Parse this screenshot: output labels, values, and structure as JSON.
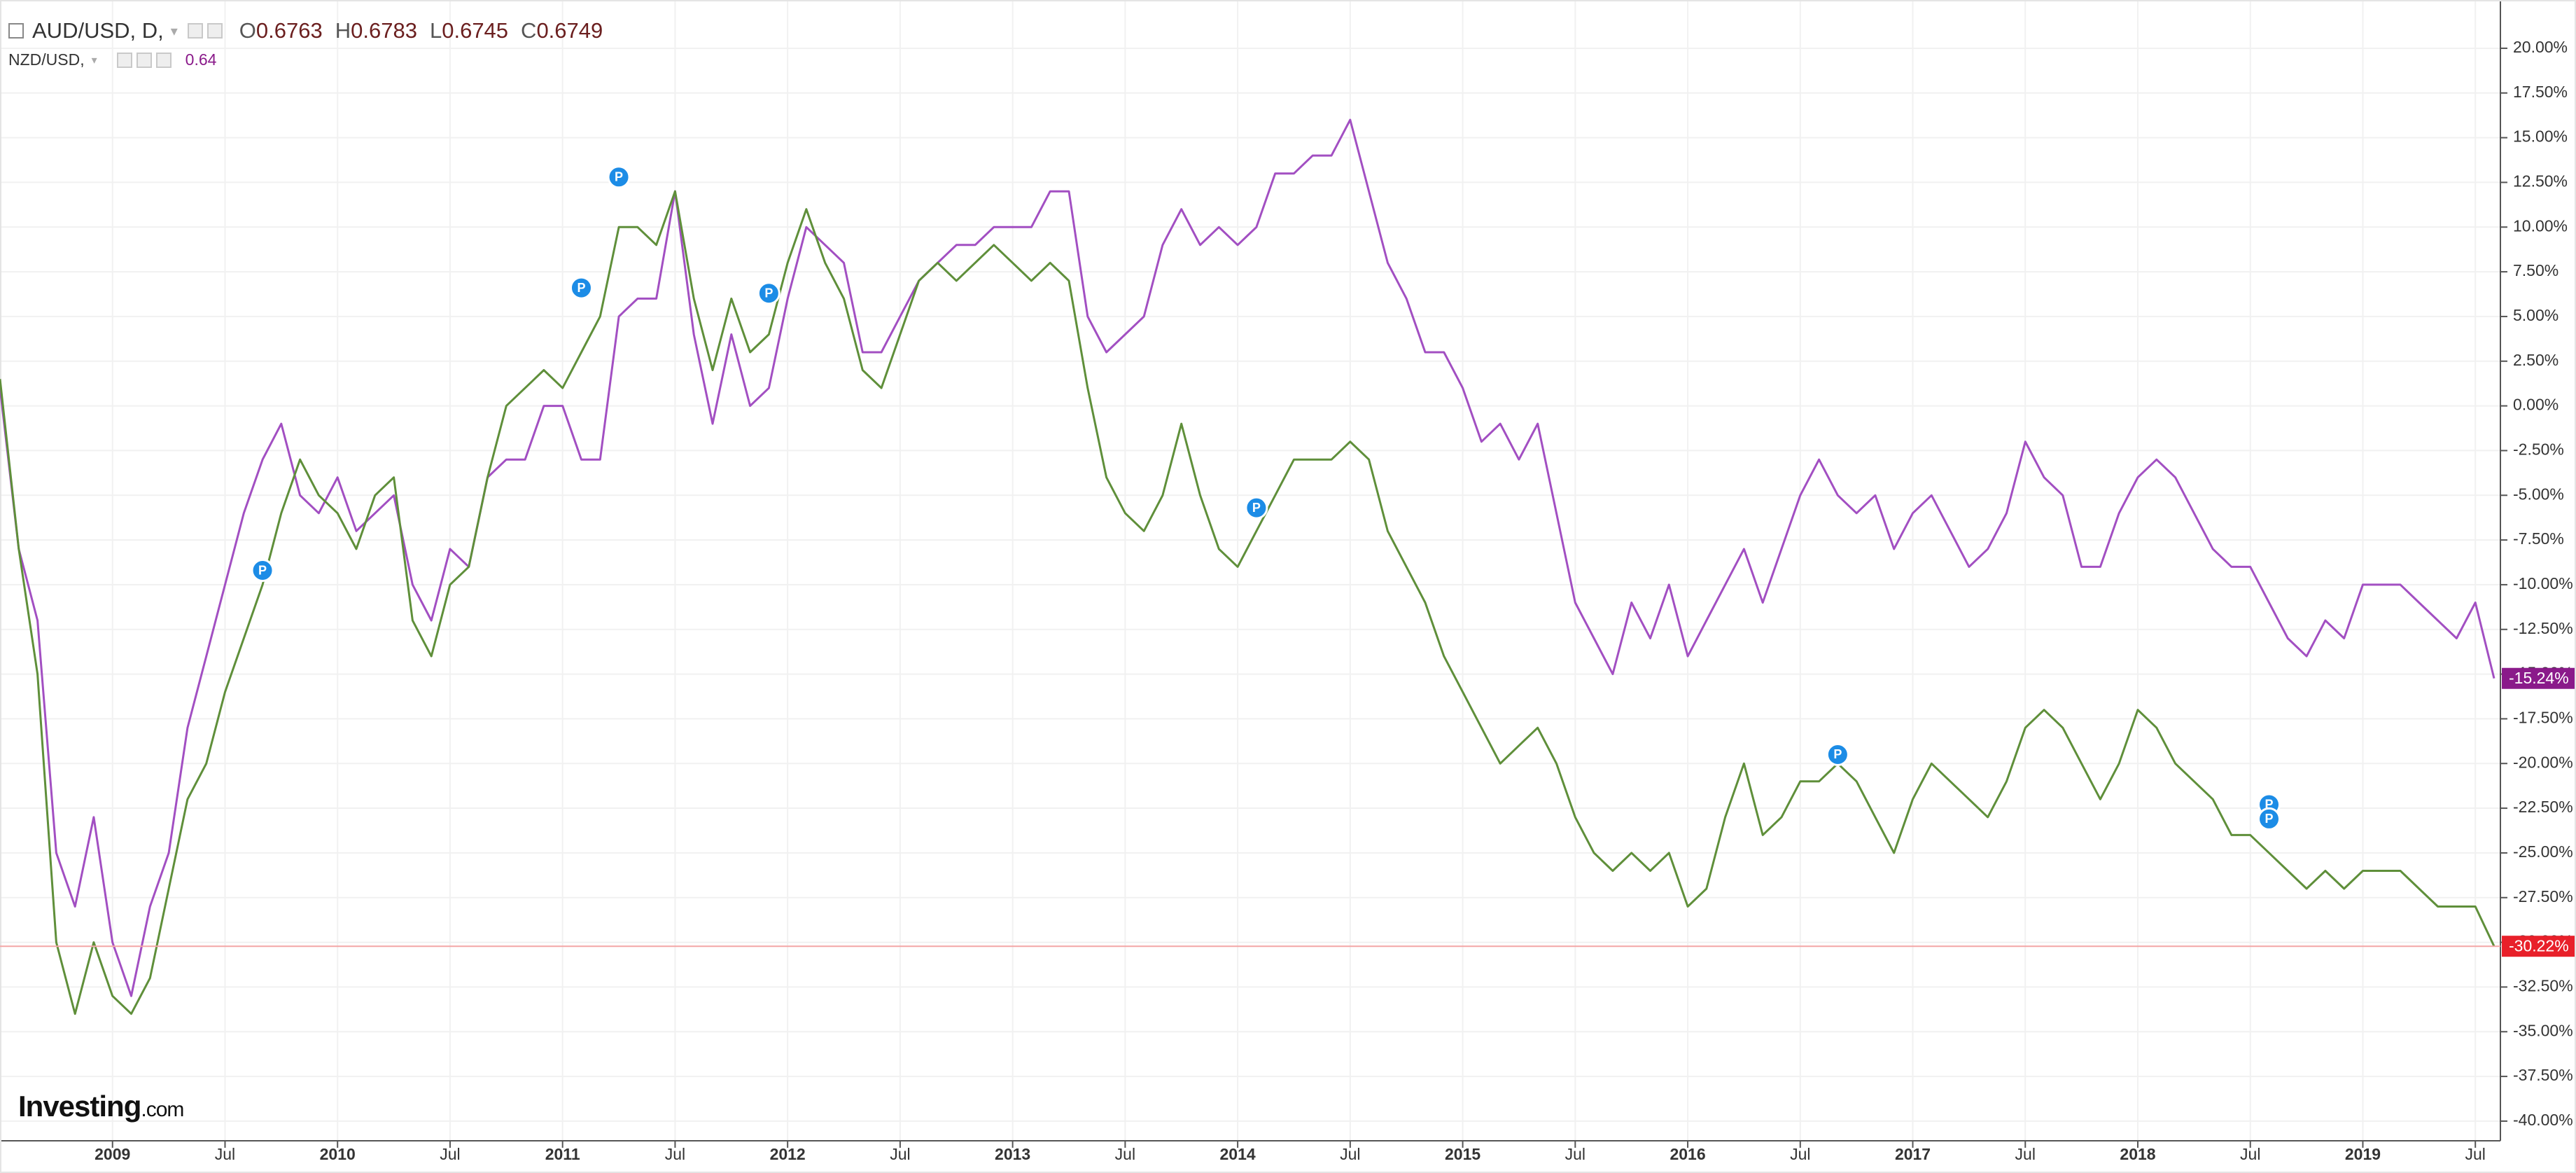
{
  "chart_data": {
    "type": "line",
    "title": "AUD/USD, D,",
    "ohlc": [
      {
        "key": "O",
        "value": "0.6763"
      },
      {
        "key": "H",
        "value": "0.6783"
      },
      {
        "key": "L",
        "value": "0.6745"
      },
      {
        "key": "C",
        "value": "0.6749"
      }
    ],
    "compare_title": "NZD/USD,",
    "compare_value": "0.64",
    "logo": [
      "Investing",
      ".com"
    ],
    "x": [
      "2008-07",
      "2008-08",
      "2008-09",
      "2008-10",
      "2008-11",
      "2008-12",
      "2009-01",
      "2009-02",
      "2009-03",
      "2009-04",
      "2009-05",
      "2009-06",
      "2009-07",
      "2009-08",
      "2009-09",
      "2009-10",
      "2009-11",
      "2009-12",
      "2010-01",
      "2010-02",
      "2010-03",
      "2010-04",
      "2010-05",
      "2010-06",
      "2010-07",
      "2010-08",
      "2010-09",
      "2010-10",
      "2010-11",
      "2010-12",
      "2011-01",
      "2011-02",
      "2011-03",
      "2011-04",
      "2011-05",
      "2011-06",
      "2011-07",
      "2011-08",
      "2011-09",
      "2011-10",
      "2011-11",
      "2011-12",
      "2012-01",
      "2012-02",
      "2012-03",
      "2012-04",
      "2012-05",
      "2012-06",
      "2012-07",
      "2012-08",
      "2012-09",
      "2012-10",
      "2012-11",
      "2012-12",
      "2013-01",
      "2013-02",
      "2013-03",
      "2013-04",
      "2013-05",
      "2013-06",
      "2013-07",
      "2013-08",
      "2013-09",
      "2013-10",
      "2013-11",
      "2013-12",
      "2014-01",
      "2014-02",
      "2014-03",
      "2014-04",
      "2014-05",
      "2014-06",
      "2014-07",
      "2014-08",
      "2014-09",
      "2014-10",
      "2014-11",
      "2014-12",
      "2015-01",
      "2015-02",
      "2015-03",
      "2015-04",
      "2015-05",
      "2015-06",
      "2015-07",
      "2015-08",
      "2015-09",
      "2015-10",
      "2015-11",
      "2015-12",
      "2016-01",
      "2016-02",
      "2016-03",
      "2016-04",
      "2016-05",
      "2016-06",
      "2016-07",
      "2016-08",
      "2016-09",
      "2016-10",
      "2016-11",
      "2016-12",
      "2017-01",
      "2017-02",
      "2017-03",
      "2017-04",
      "2017-05",
      "2017-06",
      "2017-07",
      "2017-08",
      "2017-09",
      "2017-10",
      "2017-11",
      "2017-12",
      "2018-01",
      "2018-02",
      "2018-03",
      "2018-04",
      "2018-05",
      "2018-06",
      "2018-07",
      "2018-08",
      "2018-09",
      "2018-10",
      "2018-11",
      "2018-12",
      "2019-01",
      "2019-02",
      "2019-03",
      "2019-04",
      "2019-05",
      "2019-06",
      "2019-07",
      "2019-08"
    ],
    "series": [
      {
        "name": "AUD/USD",
        "color": "#5f8f3a",
        "tag_color": "#e8202a",
        "last_label": "-30.22%",
        "values": [
          1.5,
          -8,
          -15,
          -30,
          -34,
          -30,
          -33,
          -34,
          -32,
          -27,
          -22,
          -20,
          -16,
          -13,
          -10,
          -6,
          -3,
          -5,
          -6,
          -8,
          -5,
          -4,
          -12,
          -14,
          -10,
          -9,
          -4,
          0,
          1,
          2,
          1,
          3,
          5,
          10,
          10,
          9,
          12,
          6,
          2,
          6,
          3,
          4,
          8,
          11,
          8,
          6,
          2,
          1,
          4,
          7,
          8,
          7,
          8,
          9,
          8,
          7,
          8,
          7,
          1,
          -4,
          -6,
          -7,
          -5,
          -1,
          -5,
          -8,
          -9,
          -7,
          -5,
          -3,
          -3,
          -3,
          -2,
          -3,
          -7,
          -9,
          -11,
          -14,
          -16,
          -18,
          -20,
          -19,
          -18,
          -20,
          -23,
          -25,
          -26,
          -25,
          -26,
          -25,
          -28,
          -27,
          -23,
          -20,
          -24,
          -23,
          -21,
          -21,
          -20,
          -21,
          -23,
          -25,
          -22,
          -20,
          -21,
          -22,
          -23,
          -21,
          -18,
          -17,
          -18,
          -20,
          -22,
          -20,
          -17,
          -18,
          -20,
          -21,
          -22,
          -24,
          -24,
          -25,
          -26,
          -27,
          -26,
          -27,
          -26,
          -26,
          -26,
          -27,
          -28,
          -28,
          -28,
          -30.22
        ]
      },
      {
        "name": "NZD/USD",
        "color": "#a24fc2",
        "tag_color": "#8a1a8a",
        "last_label": "-15.24%",
        "values": [
          1,
          -8,
          -12,
          -25,
          -28,
          -23,
          -30,
          -33,
          -28,
          -25,
          -18,
          -14,
          -10,
          -6,
          -3,
          -1,
          -5,
          -6,
          -4,
          -7,
          -6,
          -5,
          -10,
          -12,
          -8,
          -9,
          -4,
          -3,
          -3,
          0,
          0,
          -3,
          -3,
          5,
          6,
          6,
          12,
          4,
          -1,
          4,
          0,
          1,
          6,
          10,
          9,
          8,
          3,
          3,
          5,
          7,
          8,
          9,
          9,
          10,
          10,
          10,
          12,
          12,
          5,
          3,
          4,
          5,
          9,
          11,
          9,
          10,
          9,
          10,
          13,
          13,
          14,
          14,
          16,
          12,
          8,
          6,
          3,
          3,
          1,
          -2,
          -1,
          -3,
          -1,
          -6,
          -11,
          -13,
          -15,
          -11,
          -13,
          -10,
          -14,
          -12,
          -10,
          -8,
          -11,
          -8,
          -5,
          -3,
          -5,
          -6,
          -5,
          -8,
          -6,
          -5,
          -7,
          -9,
          -8,
          -6,
          -2,
          -4,
          -5,
          -9,
          -9,
          -6,
          -4,
          -3,
          -4,
          -6,
          -8,
          -9,
          -9,
          -11,
          -13,
          -14,
          -12,
          -13,
          -10,
          -10,
          -10,
          -11,
          -12,
          -13,
          -11,
          -15.24
        ]
      }
    ],
    "marker_label": "P",
    "markers": [
      {
        "x": "2009-09",
        "y": -9.2
      },
      {
        "x": "2011-02",
        "y": 6.6
      },
      {
        "x": "2011-04",
        "y": 12.8
      },
      {
        "x": "2011-12",
        "y": 6.3
      },
      {
        "x": "2014-02",
        "y": -5.7
      },
      {
        "x": "2016-09",
        "y": -19.5
      },
      {
        "x": "2018-08",
        "y": -22.3
      },
      {
        "x": "2018-08",
        "y": -23.1
      }
    ],
    "xlim": [
      "2008-07",
      "2019-08"
    ],
    "xticks": [
      {
        "value": "2009-01",
        "label": "2009"
      },
      {
        "value": "2009-07",
        "label": "Jul"
      },
      {
        "value": "2010-01",
        "label": "2010"
      },
      {
        "value": "2010-07",
        "label": "Jul"
      },
      {
        "value": "2011-01",
        "label": "2011"
      },
      {
        "value": "2011-07",
        "label": "Jul"
      },
      {
        "value": "2012-01",
        "label": "2012"
      },
      {
        "value": "2012-07",
        "label": "Jul"
      },
      {
        "value": "2013-01",
        "label": "2013"
      },
      {
        "value": "2013-07",
        "label": "Jul"
      },
      {
        "value": "2014-01",
        "label": "2014"
      },
      {
        "value": "2014-07",
        "label": "Jul"
      },
      {
        "value": "2015-01",
        "label": "2015"
      },
      {
        "value": "2015-07",
        "label": "Jul"
      },
      {
        "value": "2016-01",
        "label": "2016"
      },
      {
        "value": "2016-07",
        "label": "Jul"
      },
      {
        "value": "2017-01",
        "label": "2017"
      },
      {
        "value": "2017-07",
        "label": "Jul"
      },
      {
        "value": "2018-01",
        "label": "2018"
      },
      {
        "value": "2018-07",
        "label": "Jul"
      },
      {
        "value": "2019-01",
        "label": "2019"
      },
      {
        "value": "2019-07",
        "label": "Jul"
      }
    ],
    "ylim": [
      -41.1,
      22.7
    ],
    "yticks": [
      {
        "value": 20,
        "label": "20.00%"
      },
      {
        "value": 17.5,
        "label": "17.50%"
      },
      {
        "value": 15,
        "label": "15.00%"
      },
      {
        "value": 12.5,
        "label": "12.50%"
      },
      {
        "value": 10,
        "label": "10.00%"
      },
      {
        "value": 7.5,
        "label": "7.50%"
      },
      {
        "value": 5,
        "label": "5.00%"
      },
      {
        "value": 2.5,
        "label": "2.50%"
      },
      {
        "value": 0,
        "label": "0.00%"
      },
      {
        "value": -2.5,
        "label": "-2.50%"
      },
      {
        "value": -5,
        "label": "-5.00%"
      },
      {
        "value": -7.5,
        "label": "-7.50%"
      },
      {
        "value": -10,
        "label": "-10.00%"
      },
      {
        "value": -12.5,
        "label": "-12.50%"
      },
      {
        "value": -15,
        "label": "-15.00%"
      },
      {
        "value": -17.5,
        "label": "-17.50%"
      },
      {
        "value": -20,
        "label": "-20.00%"
      },
      {
        "value": -22.5,
        "label": "-22.50%"
      },
      {
        "value": -25,
        "label": "-25.00%"
      },
      {
        "value": -27.5,
        "label": "-27.50%"
      },
      {
        "value": -30,
        "label": "-30.00%"
      },
      {
        "value": -32.5,
        "label": "-32.50%"
      },
      {
        "value": -35,
        "label": "-35.00%"
      },
      {
        "value": -37.5,
        "label": "-37.50%"
      },
      {
        "value": -40,
        "label": "-40.00%"
      }
    ],
    "grid": true
  }
}
